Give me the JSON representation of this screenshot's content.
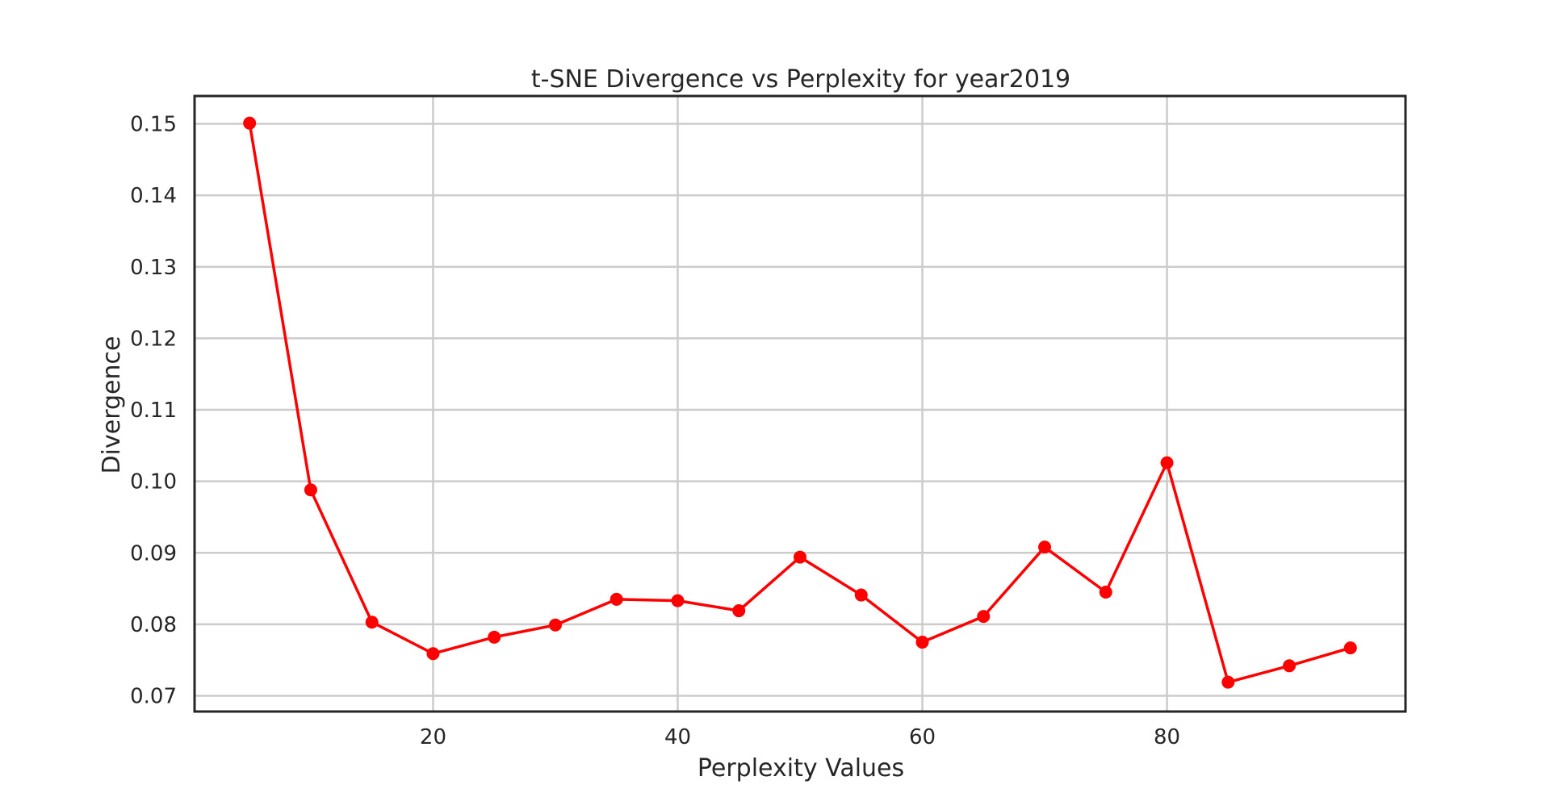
{
  "chart_data": {
    "type": "line",
    "title": "t-SNE Divergence vs Perplexity for year2019",
    "xlabel": "Perplexity Values",
    "ylabel": "Divergence",
    "xlim": [
      0.5,
      99.5
    ],
    "ylim": [
      0.0678,
      0.1539
    ],
    "xticks": [
      20,
      40,
      60,
      80
    ],
    "xtick_labels": [
      "20",
      "40",
      "60",
      "80"
    ],
    "yticks": [
      0.07,
      0.08,
      0.09,
      0.1,
      0.11,
      0.12,
      0.13,
      0.14,
      0.15
    ],
    "ytick_labels": [
      "0.07",
      "0.08",
      "0.09",
      "0.10",
      "0.11",
      "0.12",
      "0.13",
      "0.14",
      "0.15"
    ],
    "grid": true,
    "legend": "none",
    "series": [
      {
        "color": "#ff0000",
        "marker": "circle",
        "x": [
          5,
          10,
          15,
          20,
          25,
          30,
          35,
          40,
          45,
          50,
          55,
          60,
          65,
          70,
          75,
          80,
          85,
          90,
          95
        ],
        "y": [
          0.1501,
          0.0988,
          0.0803,
          0.0759,
          0.0782,
          0.0799,
          0.0835,
          0.0833,
          0.0819,
          0.0894,
          0.0841,
          0.0775,
          0.0811,
          0.0908,
          0.0845,
          0.1026,
          0.0719,
          0.0742,
          0.0767
        ]
      }
    ]
  }
}
